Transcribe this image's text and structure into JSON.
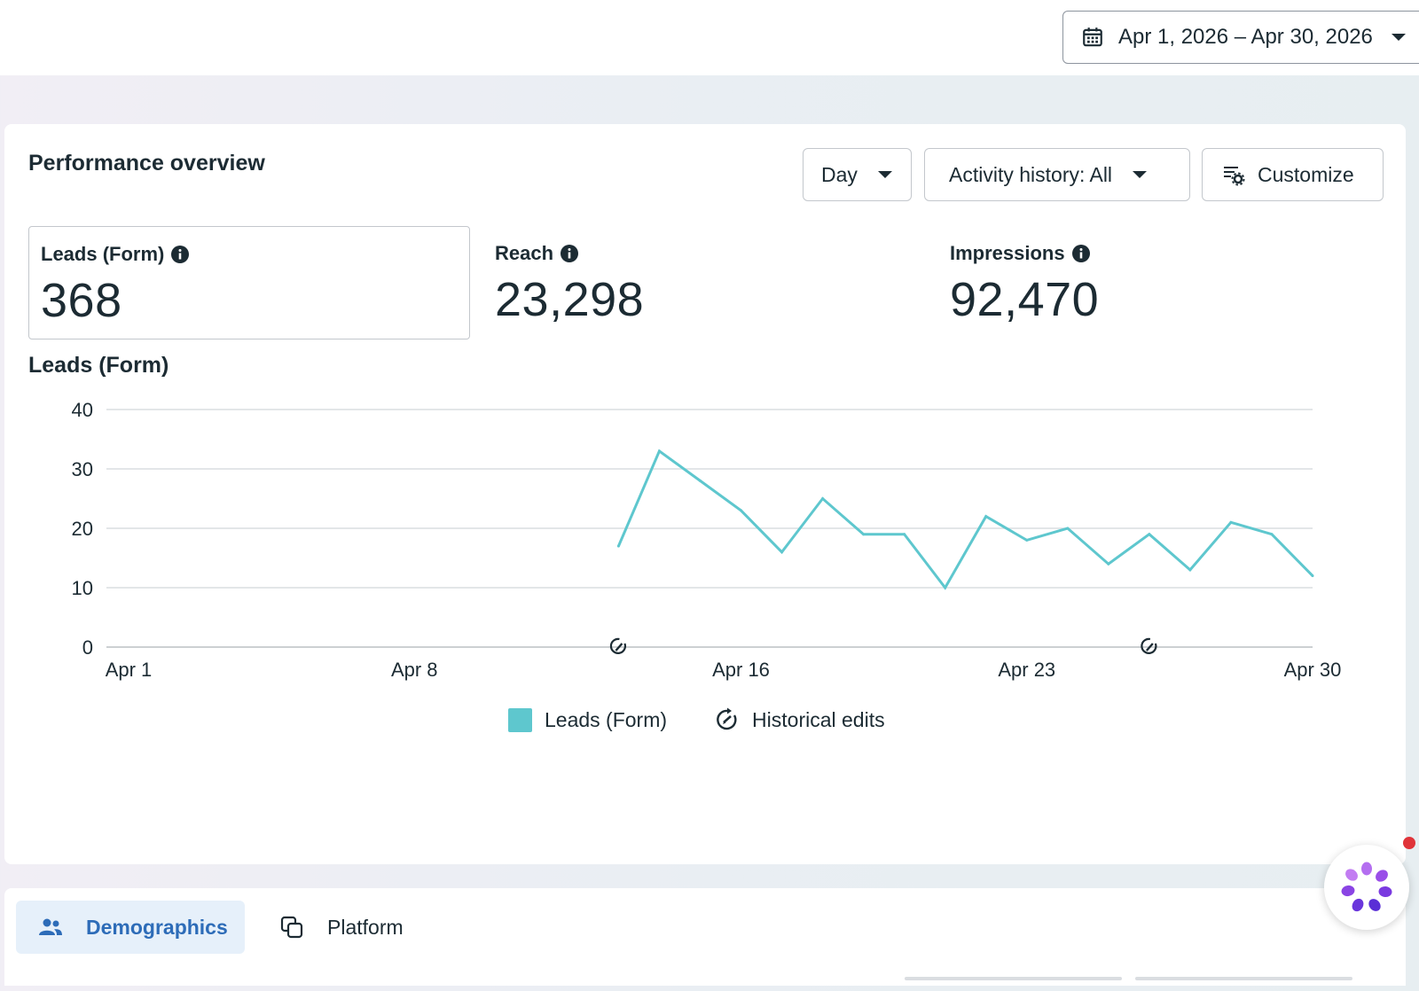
{
  "header": {
    "date_range": "Apr 1, 2026 – Apr 30, 2026"
  },
  "overview": {
    "title": "Performance overview",
    "controls": {
      "granularity": "Day",
      "activity": "Activity history: All",
      "customize": "Customize"
    },
    "metrics": [
      {
        "label": "Leads (Form)",
        "value": "368",
        "selected": true
      },
      {
        "label": "Reach",
        "value": "23,298",
        "selected": false
      },
      {
        "label": "Impressions",
        "value": "92,470",
        "selected": false
      }
    ],
    "chart_title": "Leads (Form)",
    "legend": {
      "series": "Leads (Form)",
      "edits": "Historical edits"
    }
  },
  "tabs": [
    {
      "label": "Demographics",
      "active": true
    },
    {
      "label": "Platform",
      "active": false
    }
  ],
  "colors": {
    "series": "#5ec7ce",
    "accent": "#2d6cb8",
    "notification": "#e0343a"
  },
  "chart_data": {
    "type": "line",
    "title": "Leads (Form)",
    "x_ticks": [
      "Apr 1",
      "Apr 8",
      "Apr 16",
      "Apr 23",
      "Apr 30"
    ],
    "ylim": [
      0,
      40
    ],
    "y_ticks": [
      0,
      10,
      20,
      30,
      40
    ],
    "grid": true,
    "legend": "bottom",
    "series": [
      {
        "name": "Leads (Form)",
        "x": [
          "Apr 13",
          "Apr 14",
          "Apr 15",
          "Apr 16",
          "Apr 17",
          "Apr 18",
          "Apr 19",
          "Apr 20",
          "Apr 21",
          "Apr 22",
          "Apr 23",
          "Apr 24",
          "Apr 25",
          "Apr 26",
          "Apr 27",
          "Apr 28",
          "Apr 29",
          "Apr 30"
        ],
        "values": [
          17,
          33,
          28,
          23,
          16,
          25,
          19,
          19,
          10,
          22,
          18,
          20,
          14,
          19,
          13,
          21,
          19,
          12
        ]
      }
    ],
    "historical_edits": [
      "Apr 13",
      "Apr 26"
    ]
  }
}
